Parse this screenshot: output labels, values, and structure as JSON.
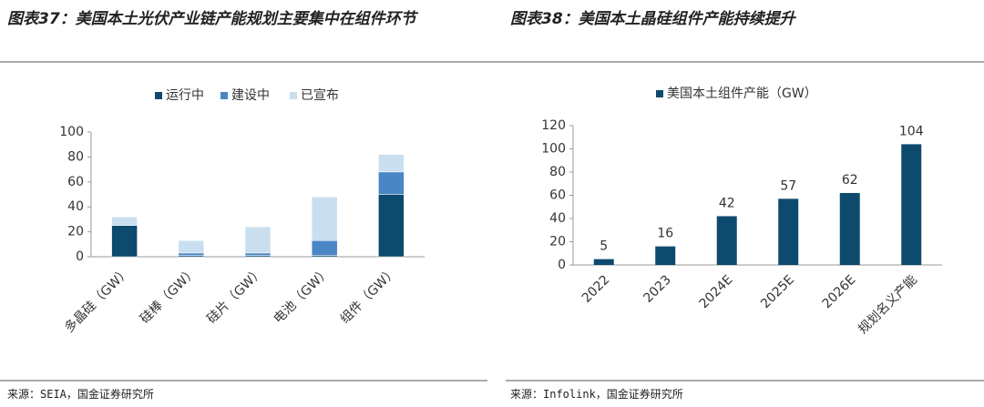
{
  "chart_data": [
    {
      "type": "stacked-bar",
      "title": "图表37：美国本土光伏产业链产能规划主要集中在组件环节",
      "categories": [
        "多晶硅（GW）",
        "硅棒（GW）",
        "硅片（GW）",
        "电池（GW）",
        "组件（GW）"
      ],
      "series": [
        {
          "name": "运行中",
          "color": "#0d4a6e",
          "values": [
            25,
            1,
            1,
            1,
            50
          ]
        },
        {
          "name": "建设中",
          "color": "#4a86c5",
          "values": [
            0,
            2,
            2,
            12,
            18
          ]
        },
        {
          "name": "已宣布",
          "color": "#c9dff0",
          "values": [
            7,
            10,
            21,
            35,
            14
          ]
        }
      ],
      "ylim": [
        0,
        100
      ],
      "yticks": [
        0,
        20,
        40,
        60,
        80,
        100
      ],
      "grid": false,
      "legend": "top",
      "source": "来源：SEIA，国金证券研究所"
    },
    {
      "type": "bar",
      "title": "图表38：美国本土晶硅组件产能持续提升",
      "categories": [
        "2022",
        "2023",
        "2024E",
        "2025E",
        "2026E",
        "规划名义产能"
      ],
      "series": [
        {
          "name": "美国本土组件产能（GW）",
          "color": "#0d4a6e",
          "values": [
            5,
            16,
            42,
            57,
            62,
            104
          ]
        }
      ],
      "ylim": [
        0,
        120
      ],
      "yticks": [
        0,
        20,
        40,
        60,
        80,
        100,
        120
      ],
      "grid": false,
      "legend": "top",
      "source": "来源：Infolink，国金证券研究所"
    }
  ]
}
